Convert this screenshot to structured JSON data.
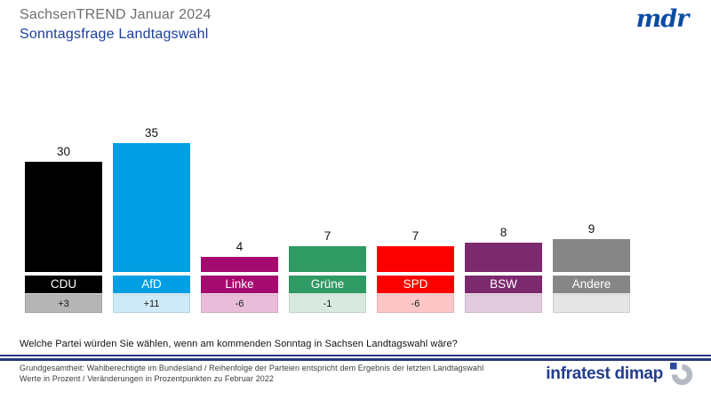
{
  "header": {
    "title": "SachsenTREND Januar 2024",
    "subtitle": "Sonntagsfrage Landtagswahl",
    "broadcaster_logo": "mdr"
  },
  "chart_data": {
    "type": "bar",
    "title": "Sonntagsfrage Landtagswahl",
    "categories": [
      "CDU",
      "AfD",
      "Linke",
      "Grüne",
      "SPD",
      "BSW",
      "Andere"
    ],
    "values": [
      30,
      35,
      4,
      7,
      7,
      8,
      9
    ],
    "changes": [
      "+3",
      "+11",
      "-6",
      "-1",
      "-6",
      "",
      ""
    ],
    "bar_colors": [
      "#000000",
      "#009ee3",
      "#a50a6e",
      "#2f9a63",
      "#fc0000",
      "#7c2a6e",
      "#868686"
    ],
    "change_box_colors": [
      "#b5b5b5",
      "#cfeaf8",
      "#e9bcd9",
      "#d9ebe1",
      "#fdc7c7",
      "#e2cbdf",
      "#e5e5e5"
    ],
    "value_unit": "Prozent",
    "ylim": [
      0,
      35
    ],
    "grid": false,
    "legend": false
  },
  "question": "Welche Partei würden Sie wählen, wenn am kommenden Sonntag in Sachsen Landtagswahl wäre?",
  "footer": {
    "line1": "Grundgesamtheit: Wahlberechtigte im Bundesland / Reihenfolge der Parteien entspricht dem Ergebnis der letzten Landtagswahl",
    "line2": "Werte in Prozent / Veränderungen  in Prozentpunkten zu Februar 2022",
    "source": "infratest dimap"
  },
  "colors": {
    "title_gray": "#6e6e6e",
    "accent_blue": "#1c3f9d",
    "mdr_blue": "#0c4da2",
    "divider_navy": "#26367f",
    "infratest_blue": "#233e8f",
    "infratest_icon_gray": "#b5b9c2",
    "infratest_icon_blue": "#2b4a9f"
  }
}
